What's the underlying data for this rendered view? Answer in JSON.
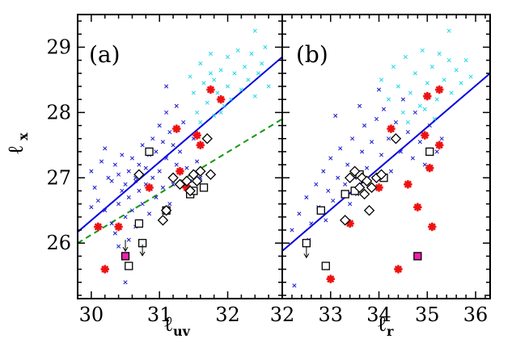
{
  "chart_data": [
    {
      "type": "scatter",
      "panel_label": "(a)",
      "xlabel": "ℓ",
      "xlabel_sub": "uv",
      "ylabel": "ℓ",
      "ylabel_sub": "x",
      "xlim": [
        29.8,
        32.8
      ],
      "ylim": [
        25.15,
        29.5
      ],
      "xticks": [
        30,
        31,
        32
      ],
      "yticks": [
        26,
        27,
        28,
        29
      ],
      "grid": false,
      "lines": [
        {
          "style": "solid",
          "color": "#0000dd",
          "points": [
            [
              29.8,
              26.17
            ],
            [
              32.8,
              28.85
            ]
          ]
        },
        {
          "style": "dashed",
          "color": "#119911",
          "points": [
            [
              29.8,
              26.0
            ],
            [
              32.8,
              27.9
            ]
          ]
        }
      ],
      "series": [
        {
          "marker": "x",
          "color": "#1a1acc",
          "points": [
            [
              30.0,
              27.1
            ],
            [
              30.05,
              26.85
            ],
            [
              30.1,
              26.65
            ],
            [
              30.15,
              27.25
            ],
            [
              30.2,
              26.5
            ],
            [
              30.25,
              27.0
            ],
            [
              30.3,
              26.3
            ],
            [
              30.3,
              26.95
            ],
            [
              30.35,
              27.2
            ],
            [
              30.4,
              26.6
            ],
            [
              30.4,
              27.05
            ],
            [
              30.45,
              26.8
            ],
            [
              30.45,
              27.35
            ],
            [
              30.5,
              26.9
            ],
            [
              30.5,
              26.4
            ],
            [
              30.55,
              27.1
            ],
            [
              30.55,
              26.7
            ],
            [
              30.6,
              27.3
            ],
            [
              30.6,
              26.5
            ],
            [
              30.65,
              27.0
            ],
            [
              30.65,
              26.25
            ],
            [
              30.7,
              27.2
            ],
            [
              30.7,
              26.8
            ],
            [
              30.75,
              27.5
            ],
            [
              30.75,
              26.6
            ],
            [
              30.8,
              27.15
            ],
            [
              30.8,
              26.9
            ],
            [
              30.85,
              27.35
            ],
            [
              30.85,
              26.45
            ],
            [
              30.9,
              27.6
            ],
            [
              30.9,
              27.0
            ],
            [
              30.95,
              27.4
            ],
            [
              30.95,
              26.7
            ],
            [
              31.0,
              27.8
            ],
            [
              31.0,
              27.1
            ],
            [
              31.05,
              27.55
            ],
            [
              31.05,
              26.85
            ],
            [
              31.1,
              28.0
            ],
            [
              31.1,
              27.3
            ],
            [
              31.15,
              27.7
            ],
            [
              31.15,
              26.6
            ],
            [
              31.2,
              27.5
            ],
            [
              31.2,
              26.9
            ],
            [
              31.25,
              28.1
            ],
            [
              31.25,
              27.2
            ],
            [
              31.3,
              27.4
            ],
            [
              31.35,
              27.85
            ],
            [
              31.4,
              27.15
            ],
            [
              31.45,
              26.95
            ],
            [
              31.5,
              27.6
            ],
            [
              31.55,
              27.25
            ],
            [
              31.6,
              27.0
            ],
            [
              31.1,
              28.4
            ],
            [
              30.2,
              27.45
            ],
            [
              30.0,
              26.55
            ],
            [
              30.55,
              26.05
            ],
            [
              30.4,
              25.95
            ],
            [
              30.5,
              25.4
            ],
            [
              30.35,
              26.15
            ],
            [
              30.65,
              26.95
            ]
          ]
        },
        {
          "marker": "x",
          "color": "#22d8e8",
          "points": [
            [
              31.45,
              28.55
            ],
            [
              31.5,
              28.3
            ],
            [
              31.55,
              28.0
            ],
            [
              31.6,
              28.75
            ],
            [
              31.65,
              28.45
            ],
            [
              31.7,
              28.15
            ],
            [
              31.75,
              28.9
            ],
            [
              31.8,
              28.5
            ],
            [
              31.8,
              27.95
            ],
            [
              31.85,
              28.3
            ],
            [
              31.9,
              28.65
            ],
            [
              31.95,
              28.1
            ],
            [
              32.0,
              28.85
            ],
            [
              32.0,
              28.4
            ],
            [
              32.05,
              28.2
            ],
            [
              32.1,
              28.6
            ],
            [
              32.15,
              28.95
            ],
            [
              32.2,
              28.35
            ],
            [
              32.25,
              28.7
            ],
            [
              32.3,
              28.5
            ],
            [
              32.35,
              28.9
            ],
            [
              32.4,
              28.25
            ],
            [
              32.45,
              28.6
            ],
            [
              32.5,
              28.75
            ],
            [
              32.55,
              29.0
            ],
            [
              32.6,
              28.4
            ],
            [
              32.4,
              29.25
            ],
            [
              31.6,
              27.85
            ],
            [
              31.75,
              28.6
            ],
            [
              31.9,
              28.0
            ]
          ]
        },
        {
          "marker": "asterisk",
          "color": "#ee1111",
          "points": [
            [
              30.1,
              26.25
            ],
            [
              30.2,
              25.6
            ],
            [
              30.4,
              26.25
            ],
            [
              30.85,
              26.85
            ],
            [
              31.25,
              27.75
            ],
            [
              31.3,
              27.1
            ],
            [
              31.35,
              26.9
            ],
            [
              31.4,
              26.85
            ],
            [
              31.55,
              27.65
            ],
            [
              31.6,
              27.5
            ],
            [
              31.75,
              28.35
            ],
            [
              31.9,
              28.2
            ]
          ]
        },
        {
          "marker": "square",
          "color": "#000000",
          "points": [
            [
              30.55,
              25.65
            ],
            [
              30.7,
              26.3
            ],
            [
              30.75,
              26.0
            ],
            [
              30.85,
              27.4
            ],
            [
              31.1,
              26.5
            ],
            [
              31.45,
              26.75
            ],
            [
              31.5,
              26.8
            ],
            [
              31.65,
              26.85
            ]
          ]
        },
        {
          "marker": "diamond",
          "color": "#000000",
          "points": [
            [
              30.7,
              27.05
            ],
            [
              31.05,
              26.35
            ],
            [
              31.1,
              26.5
            ],
            [
              31.2,
              27.0
            ],
            [
              31.3,
              26.9
            ],
            [
              31.4,
              26.95
            ],
            [
              31.45,
              26.8
            ],
            [
              31.5,
              27.05
            ],
            [
              31.55,
              26.95
            ],
            [
              31.6,
              27.1
            ],
            [
              31.7,
              27.6
            ],
            [
              31.75,
              27.05
            ]
          ]
        },
        {
          "marker": "filled-square",
          "color": "#ee22aa",
          "points": [
            [
              30.5,
              25.8
            ]
          ]
        }
      ],
      "upper_limits": [
        [
          30.5,
          26.05
        ],
        [
          30.75,
          25.98
        ]
      ]
    },
    {
      "type": "scatter",
      "panel_label": "(b)",
      "xlabel": "ℓ",
      "xlabel_sub": "r",
      "xlim": [
        32.0,
        36.3
      ],
      "ylim": [
        25.15,
        29.5
      ],
      "xticks": [
        32,
        33,
        34,
        35,
        36
      ],
      "yticks": [
        26,
        27,
        28,
        29
      ],
      "grid": false,
      "lines": [
        {
          "style": "solid",
          "color": "#0000dd",
          "points": [
            [
              32.0,
              25.88
            ],
            [
              36.3,
              28.6
            ]
          ]
        }
      ],
      "series": [
        {
          "marker": "x",
          "color": "#1a1acc",
          "points": [
            [
              32.2,
              26.2
            ],
            [
              32.25,
              25.35
            ],
            [
              32.35,
              26.45
            ],
            [
              32.5,
              26.7
            ],
            [
              32.6,
              26.3
            ],
            [
              32.7,
              26.9
            ],
            [
              32.75,
              26.55
            ],
            [
              32.85,
              27.1
            ],
            [
              32.95,
              26.8
            ],
            [
              33.0,
              27.3
            ],
            [
              33.05,
              26.65
            ],
            [
              33.15,
              27.0
            ],
            [
              33.2,
              27.45
            ],
            [
              33.3,
              26.9
            ],
            [
              33.35,
              27.2
            ],
            [
              33.45,
              27.6
            ],
            [
              33.5,
              27.0
            ],
            [
              33.55,
              26.75
            ],
            [
              33.65,
              27.4
            ],
            [
              33.7,
              27.8
            ],
            [
              33.75,
              27.15
            ],
            [
              33.85,
              27.55
            ],
            [
              33.9,
              27.0
            ],
            [
              33.95,
              27.9
            ],
            [
              34.05,
              27.35
            ],
            [
              34.1,
              28.05
            ],
            [
              34.2,
              27.6
            ],
            [
              34.25,
              27.1
            ],
            [
              34.35,
              27.85
            ],
            [
              34.45,
              27.4
            ],
            [
              34.5,
              28.2
            ],
            [
              34.6,
              27.7
            ],
            [
              34.7,
              27.3
            ],
            [
              34.75,
              28.0
            ],
            [
              34.85,
              27.55
            ],
            [
              34.95,
              27.2
            ],
            [
              35.05,
              27.8
            ],
            [
              35.2,
              27.4
            ],
            [
              33.1,
              27.95
            ],
            [
              32.9,
              26.35
            ],
            [
              33.4,
              26.6
            ],
            [
              34.0,
              28.35
            ],
            [
              33.6,
              28.1
            ],
            [
              35.3,
              27.6
            ],
            [
              32.55,
              26.05
            ]
          ]
        },
        {
          "marker": "x",
          "color": "#22d8e8",
          "points": [
            [
              34.05,
              28.5
            ],
            [
              34.2,
              28.2
            ],
            [
              34.3,
              28.7
            ],
            [
              34.4,
              28.4
            ],
            [
              34.5,
              28.0
            ],
            [
              34.55,
              28.85
            ],
            [
              34.65,
              28.3
            ],
            [
              34.75,
              28.6
            ],
            [
              34.85,
              28.1
            ],
            [
              34.9,
              28.95
            ],
            [
              35.0,
              28.45
            ],
            [
              35.1,
              28.7
            ],
            [
              35.2,
              28.2
            ],
            [
              35.25,
              28.9
            ],
            [
              35.35,
              28.5
            ],
            [
              35.45,
              28.8
            ],
            [
              35.5,
              28.3
            ],
            [
              35.6,
              28.65
            ],
            [
              35.7,
              28.45
            ],
            [
              35.8,
              28.8
            ],
            [
              35.9,
              28.55
            ],
            [
              35.45,
              29.25
            ],
            [
              34.6,
              27.85
            ],
            [
              34.95,
              28.05
            ],
            [
              35.15,
              27.9
            ]
          ]
        },
        {
          "marker": "asterisk",
          "color": "#ee1111",
          "points": [
            [
              33.0,
              25.45
            ],
            [
              33.4,
              26.3
            ],
            [
              34.0,
              26.85
            ],
            [
              34.25,
              27.75
            ],
            [
              34.4,
              25.6
            ],
            [
              34.6,
              26.9
            ],
            [
              34.8,
              26.55
            ],
            [
              34.95,
              27.65
            ],
            [
              35.0,
              28.25
            ],
            [
              35.05,
              27.15
            ],
            [
              35.1,
              26.25
            ],
            [
              35.25,
              27.5
            ],
            [
              35.25,
              28.35
            ]
          ]
        },
        {
          "marker": "square",
          "color": "#000000",
          "points": [
            [
              32.5,
              26.0
            ],
            [
              32.8,
              26.5
            ],
            [
              32.9,
              25.65
            ],
            [
              33.3,
              26.75
            ],
            [
              33.5,
              26.8
            ],
            [
              33.6,
              27.05
            ],
            [
              34.1,
              27.0
            ],
            [
              35.05,
              27.4
            ]
          ]
        },
        {
          "marker": "diamond",
          "color": "#000000",
          "points": [
            [
              33.3,
              26.35
            ],
            [
              33.4,
              27.0
            ],
            [
              33.5,
              27.1
            ],
            [
              33.6,
              26.85
            ],
            [
              33.65,
              27.0
            ],
            [
              33.7,
              26.75
            ],
            [
              33.75,
              26.95
            ],
            [
              33.8,
              26.5
            ],
            [
              33.85,
              26.85
            ],
            [
              33.95,
              27.0
            ],
            [
              34.05,
              27.05
            ],
            [
              34.35,
              27.6
            ]
          ]
        },
        {
          "marker": "filled-square",
          "color": "#ee22aa",
          "points": [
            [
              34.8,
              25.8
            ]
          ]
        }
      ],
      "upper_limits": [
        [
          32.5,
          25.95
        ]
      ]
    }
  ]
}
